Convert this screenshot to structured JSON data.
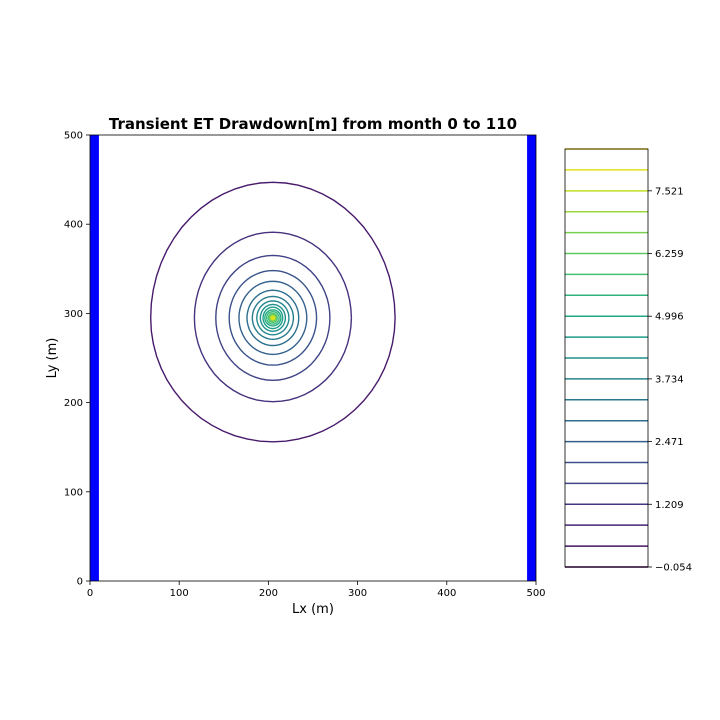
{
  "chart_data": {
    "type": "contour",
    "title": "Transient ET Drawdown[m] from month 0 to 110",
    "xlabel": "Lx (m)",
    "ylabel": "Ly (m)",
    "xlim": [
      0,
      500
    ],
    "ylim": [
      0,
      500
    ],
    "x_ticks": [
      "0",
      "100",
      "200",
      "300",
      "400",
      "500"
    ],
    "y_ticks": [
      "0",
      "100",
      "200",
      "300",
      "400",
      "500"
    ],
    "x_tick_values": [
      0,
      100,
      200,
      300,
      400,
      500
    ],
    "y_tick_values": [
      0,
      100,
      200,
      300,
      400,
      500
    ],
    "grid": false,
    "center": [
      205,
      295
    ],
    "contour_levels": [
      -0.054,
      0.367,
      0.788,
      1.209,
      1.63,
      2.05,
      2.471,
      2.892,
      3.313,
      3.734,
      4.155,
      4.575,
      4.996,
      5.417,
      5.838,
      6.259,
      6.68,
      7.1,
      7.521,
      7.942,
      8.363
    ],
    "contour_radii": [
      {
        "level": 0.367,
        "rx": 137,
        "ry_up": 152,
        "ry_down": 139,
        "color": "#481a6c"
      },
      {
        "level": 0.788,
        "rx": 88,
        "ry_up": 96,
        "ry_down": 94,
        "color": "#46327e"
      },
      {
        "level": 1.209,
        "rx": 64,
        "ry_up": 70,
        "ry_down": 70,
        "color": "#404387"
      },
      {
        "level": 1.63,
        "rx": 49,
        "ry_up": 53,
        "ry_down": 53,
        "color": "#3a538b"
      },
      {
        "level": 2.05,
        "rx": 38,
        "ry_up": 41,
        "ry_down": 41,
        "color": "#34628d"
      },
      {
        "level": 2.471,
        "rx": 29,
        "ry_up": 31,
        "ry_down": 31,
        "color": "#2e6f8e"
      },
      {
        "level": 2.892,
        "rx": 23,
        "ry_up": 24,
        "ry_down": 24,
        "color": "#297b8e"
      },
      {
        "level": 3.313,
        "rx": 18,
        "ry_up": 19,
        "ry_down": 19,
        "color": "#24878e"
      },
      {
        "level": 3.734,
        "rx": 14,
        "ry_up": 15,
        "ry_down": 15,
        "color": "#21918c"
      },
      {
        "level": 4.155,
        "rx": 11,
        "ry_up": 12,
        "ry_down": 12,
        "color": "#1f9e89"
      },
      {
        "level": 4.575,
        "rx": 9,
        "ry_up": 9,
        "ry_down": 9,
        "color": "#25ab82"
      },
      {
        "level": 4.996,
        "rx": 7,
        "ry_up": 7,
        "ry_down": 7,
        "color": "#35b779"
      },
      {
        "level": 5.417,
        "rx": 5,
        "ry_up": 5,
        "ry_down": 5,
        "color": "#4ec36b"
      },
      {
        "level": 5.838,
        "rx": 3.5,
        "ry_up": 3.5,
        "ry_down": 3.5,
        "color": "#6ccd5a"
      },
      {
        "level": 6.259,
        "rx": 2,
        "ry_up": 2,
        "ry_down": 2,
        "color": "#b5de2b"
      }
    ],
    "boundaries": [
      {
        "name": "left-boundary",
        "x": [
          0,
          10
        ],
        "color": "#0000ff"
      },
      {
        "name": "right-boundary",
        "x": [
          490,
          500
        ],
        "color": "#0000ff"
      }
    ],
    "colorbar": {
      "tick_labels": [
        "7.521",
        "6.259",
        "4.996",
        "3.734",
        "2.471",
        "1.209",
        "−0.054"
      ],
      "tick_values": [
        7.521,
        6.259,
        4.996,
        3.734,
        2.471,
        1.209,
        -0.054
      ],
      "min": -0.054,
      "max": 8.363,
      "line_colors": [
        "#440154",
        "#471365",
        "#482475",
        "#463480",
        "#414487",
        "#3b528b",
        "#355f8d",
        "#2f6c8e",
        "#2a788e",
        "#25848e",
        "#21918c",
        "#1e9c89",
        "#22a884",
        "#2fb47c",
        "#44bf70",
        "#5ec962",
        "#7ad151",
        "#9bd93c",
        "#bddf26",
        "#dfe318",
        "#fde725"
      ]
    }
  }
}
